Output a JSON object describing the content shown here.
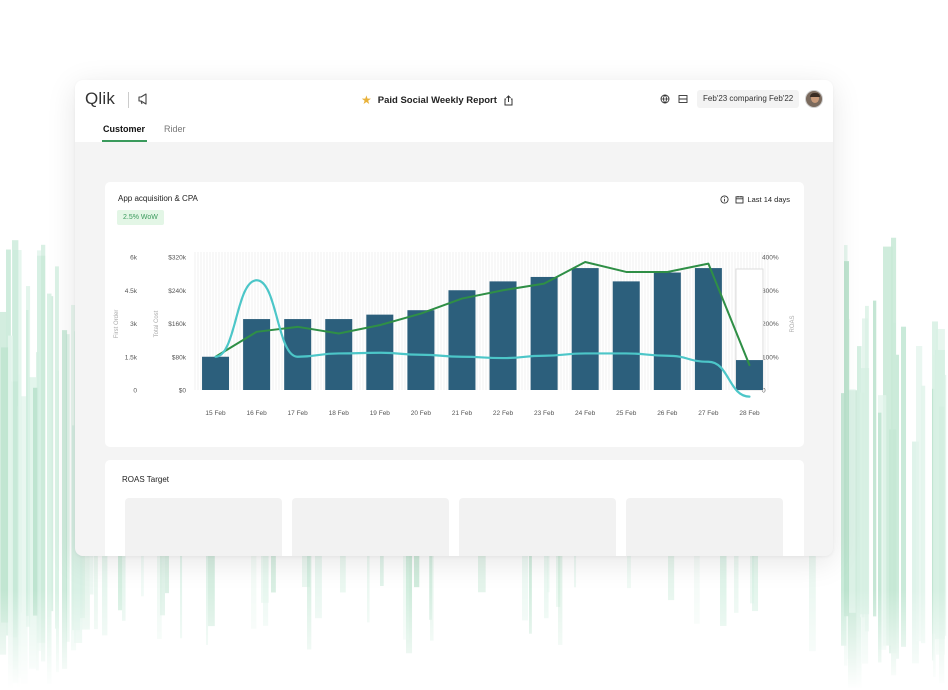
{
  "app": {
    "logo_text": "Qlik",
    "report_title": "Paid Social Weekly Report",
    "compare_label": "Feb'23 comparing Feb'22",
    "icons": [
      "announcement-icon",
      "star-icon",
      "share-icon",
      "globe-icon",
      "layout-icon",
      "user-avatar"
    ]
  },
  "tabs": [
    {
      "label": "Customer",
      "active": true
    },
    {
      "label": "Rider",
      "active": false
    }
  ],
  "chart_card": {
    "title": "App acquisition & CPA",
    "badge": "2.5% WoW",
    "range_label": "Last 14 days",
    "icons": [
      "info-icon",
      "calendar-icon"
    ]
  },
  "roas_card": {
    "title": "ROAS Target",
    "tile_count": 4
  },
  "colors": {
    "bar": "#2c5f7c",
    "line_green": "#2f8f46",
    "line_cyan": "#4cc6c8",
    "accent": "#3a9a5c"
  },
  "chart_data": {
    "type": "bar",
    "categories": [
      "15 Feb",
      "16 Feb",
      "17 Feb",
      "18 Feb",
      "19 Feb",
      "20 Feb",
      "21 Feb",
      "22 Feb",
      "23 Feb",
      "24 Feb",
      "25 Feb",
      "26 Feb",
      "27 Feb",
      "28 Feb"
    ],
    "axes": {
      "first_order": {
        "label": "First Order",
        "ticks": [
          "0",
          "1.5k",
          "3k",
          "4.5k",
          "6k"
        ],
        "range": [
          0,
          6000
        ]
      },
      "total_cost": {
        "label": "Total Cost",
        "ticks": [
          "$0",
          "$80k",
          "$160k",
          "$240k",
          "$320k"
        ],
        "range": [
          0,
          320000
        ]
      },
      "right": {
        "label": "ROAS",
        "ticks": [
          "0",
          "100%",
          "200%",
          "300%",
          "400%"
        ],
        "range": [
          0,
          400
        ]
      }
    },
    "series": [
      {
        "name": "",
        "kind": "bar",
        "axis": "first_order",
        "values": [
          1500,
          3200,
          3200,
          3200,
          3400,
          3600,
          4500,
          4900,
          5100,
          5500,
          4900,
          5300,
          5500,
          1350
        ],
        "outline_last": true
      },
      {
        "name": "",
        "kind": "line",
        "axis": "right",
        "color": "#2f8f46",
        "values": [
          100,
          175,
          190,
          170,
          195,
          230,
          275,
          300,
          320,
          385,
          355,
          355,
          380,
          75
        ]
      },
      {
        "name": "",
        "kind": "line",
        "axis": "right",
        "color": "#4cc6c8",
        "values": [
          100,
          330,
          100,
          110,
          112,
          106,
          100,
          96,
          103,
          110,
          110,
          103,
          85,
          -20
        ]
      }
    ],
    "grid": false,
    "legend": "none"
  }
}
